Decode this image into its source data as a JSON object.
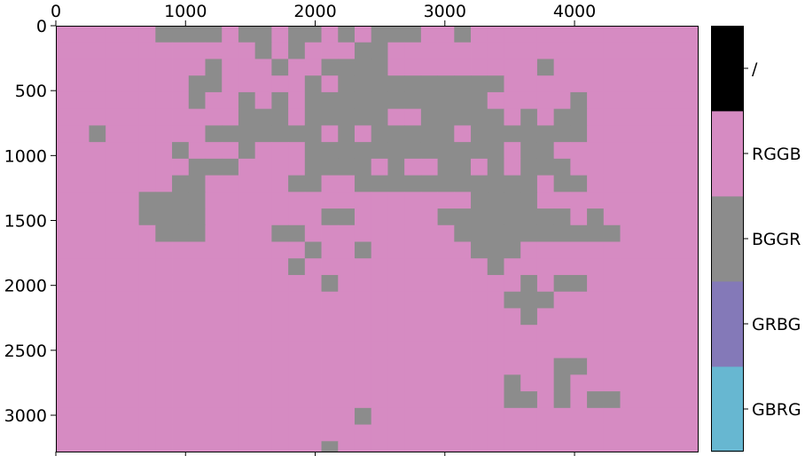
{
  "chart_data": {
    "type": "heatmap",
    "title": "",
    "xlabel": "",
    "ylabel": "",
    "xlim": [
      0,
      4950
    ],
    "ylim": [
      3280,
      0
    ],
    "xticks": [
      0,
      1000,
      2000,
      3000,
      4000
    ],
    "yticks": [
      0,
      500,
      1000,
      1500,
      2000,
      2500,
      3000
    ],
    "grid": false,
    "cell_size": [
      128,
      128
    ],
    "n_cols": 39,
    "n_rows": 26,
    "categories": [
      "GBRG",
      "GRBG",
      "BGGR",
      "RGGB",
      "/"
    ],
    "colors": {
      "GBRG": "#67b7d1",
      "GRBG": "#8479b8",
      "BGGR": "#8c8c8c",
      "RGGB": "#d68bc2",
      "/": "#000000"
    },
    "default_value": "RGGB",
    "bggr_cells": [
      [
        0,
        6
      ],
      [
        0,
        7
      ],
      [
        0,
        8
      ],
      [
        0,
        9
      ],
      [
        0,
        11
      ],
      [
        0,
        12
      ],
      [
        0,
        14
      ],
      [
        0,
        15
      ],
      [
        0,
        17
      ],
      [
        0,
        19
      ],
      [
        0,
        20
      ],
      [
        0,
        21
      ],
      [
        0,
        24
      ],
      [
        1,
        12
      ],
      [
        1,
        14
      ],
      [
        1,
        18
      ],
      [
        1,
        19
      ],
      [
        2,
        9
      ],
      [
        2,
        13
      ],
      [
        2,
        16
      ],
      [
        2,
        17
      ],
      [
        2,
        18
      ],
      [
        2,
        19
      ],
      [
        2,
        29
      ],
      [
        3,
        8
      ],
      [
        3,
        9
      ],
      [
        3,
        15
      ],
      [
        3,
        17
      ],
      [
        3,
        18
      ],
      [
        3,
        19
      ],
      [
        3,
        20
      ],
      [
        3,
        21
      ],
      [
        3,
        22
      ],
      [
        3,
        23
      ],
      [
        3,
        24
      ],
      [
        3,
        25
      ],
      [
        3,
        26
      ],
      [
        4,
        8
      ],
      [
        4,
        11
      ],
      [
        4,
        13
      ],
      [
        4,
        15
      ],
      [
        4,
        16
      ],
      [
        4,
        17
      ],
      [
        4,
        18
      ],
      [
        4,
        19
      ],
      [
        4,
        20
      ],
      [
        4,
        21
      ],
      [
        4,
        22
      ],
      [
        4,
        23
      ],
      [
        4,
        24
      ],
      [
        4,
        25
      ],
      [
        4,
        31
      ],
      [
        5,
        11
      ],
      [
        5,
        12
      ],
      [
        5,
        13
      ],
      [
        5,
        15
      ],
      [
        5,
        16
      ],
      [
        5,
        17
      ],
      [
        5,
        18
      ],
      [
        5,
        19
      ],
      [
        5,
        22
      ],
      [
        5,
        23
      ],
      [
        5,
        24
      ],
      [
        5,
        25
      ],
      [
        5,
        26
      ],
      [
        5,
        28
      ],
      [
        5,
        30
      ],
      [
        5,
        31
      ],
      [
        6,
        2
      ],
      [
        6,
        9
      ],
      [
        6,
        10
      ],
      [
        6,
        11
      ],
      [
        6,
        12
      ],
      [
        6,
        13
      ],
      [
        6,
        14
      ],
      [
        6,
        15
      ],
      [
        6,
        17
      ],
      [
        6,
        19
      ],
      [
        6,
        20
      ],
      [
        6,
        21
      ],
      [
        6,
        22
      ],
      [
        6,
        23
      ],
      [
        6,
        25
      ],
      [
        6,
        26
      ],
      [
        6,
        27
      ],
      [
        6,
        28
      ],
      [
        6,
        29
      ],
      [
        6,
        30
      ],
      [
        6,
        31
      ],
      [
        7,
        7
      ],
      [
        7,
        11
      ],
      [
        7,
        15
      ],
      [
        7,
        16
      ],
      [
        7,
        17
      ],
      [
        7,
        18
      ],
      [
        7,
        19
      ],
      [
        7,
        20
      ],
      [
        7,
        21
      ],
      [
        7,
        22
      ],
      [
        7,
        23
      ],
      [
        7,
        24
      ],
      [
        7,
        25
      ],
      [
        7,
        26
      ],
      [
        7,
        28
      ],
      [
        7,
        29
      ],
      [
        8,
        8
      ],
      [
        8,
        9
      ],
      [
        8,
        10
      ],
      [
        8,
        15
      ],
      [
        8,
        16
      ],
      [
        8,
        17
      ],
      [
        8,
        18
      ],
      [
        8,
        20
      ],
      [
        8,
        23
      ],
      [
        8,
        24
      ],
      [
        8,
        26
      ],
      [
        8,
        28
      ],
      [
        8,
        29
      ],
      [
        8,
        30
      ],
      [
        9,
        7
      ],
      [
        9,
        8
      ],
      [
        9,
        14
      ],
      [
        9,
        15
      ],
      [
        9,
        18
      ],
      [
        9,
        19
      ],
      [
        9,
        20
      ],
      [
        9,
        21
      ],
      [
        9,
        22
      ],
      [
        9,
        23
      ],
      [
        9,
        24
      ],
      [
        9,
        25
      ],
      [
        9,
        26
      ],
      [
        9,
        27
      ],
      [
        9,
        28
      ],
      [
        9,
        30
      ],
      [
        9,
        31
      ],
      [
        10,
        5
      ],
      [
        10,
        6
      ],
      [
        10,
        7
      ],
      [
        10,
        8
      ],
      [
        10,
        25
      ],
      [
        10,
        26
      ],
      [
        10,
        27
      ],
      [
        10,
        28
      ],
      [
        11,
        5
      ],
      [
        11,
        6
      ],
      [
        11,
        7
      ],
      [
        11,
        8
      ],
      [
        11,
        16
      ],
      [
        11,
        17
      ],
      [
        11,
        23
      ],
      [
        11,
        24
      ],
      [
        11,
        25
      ],
      [
        11,
        26
      ],
      [
        11,
        27
      ],
      [
        11,
        28
      ],
      [
        11,
        29
      ],
      [
        11,
        30
      ],
      [
        11,
        32
      ],
      [
        12,
        6
      ],
      [
        12,
        7
      ],
      [
        12,
        8
      ],
      [
        12,
        13
      ],
      [
        12,
        14
      ],
      [
        12,
        24
      ],
      [
        12,
        25
      ],
      [
        12,
        26
      ],
      [
        12,
        27
      ],
      [
        12,
        28
      ],
      [
        12,
        29
      ],
      [
        12,
        30
      ],
      [
        12,
        31
      ],
      [
        12,
        32
      ],
      [
        12,
        33
      ],
      [
        13,
        15
      ],
      [
        13,
        18
      ],
      [
        13,
        25
      ],
      [
        13,
        26
      ],
      [
        13,
        27
      ],
      [
        14,
        14
      ],
      [
        14,
        26
      ],
      [
        15,
        16
      ],
      [
        15,
        28
      ],
      [
        15,
        30
      ],
      [
        15,
        31
      ],
      [
        16,
        27
      ],
      [
        16,
        28
      ],
      [
        16,
        29
      ],
      [
        17,
        28
      ],
      [
        20,
        30
      ],
      [
        20,
        31
      ],
      [
        21,
        27
      ],
      [
        21,
        30
      ],
      [
        22,
        27
      ],
      [
        22,
        28
      ],
      [
        22,
        30
      ],
      [
        22,
        32
      ],
      [
        22,
        33
      ],
      [
        23,
        18
      ],
      [
        25,
        16
      ]
    ],
    "colorbar": {
      "labels": [
        "GBRG",
        "GRBG",
        "BGGR",
        "RGGB",
        "/"
      ]
    }
  }
}
